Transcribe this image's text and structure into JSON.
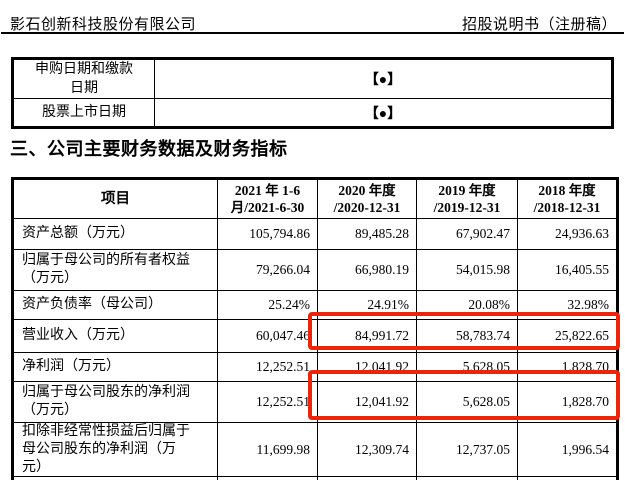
{
  "page": {
    "header": {
      "company": "影石创新科技股份有限公司",
      "doc_type": "招股说明书（注册稿）"
    },
    "section_title": "三、公司主要财务数据及财务指标"
  },
  "issue_info_table": {
    "rows": [
      {
        "label": "申购日期和缴款日期",
        "value": "【●】"
      },
      {
        "label": "股票上市日期",
        "value": "【●】"
      }
    ]
  },
  "financial_table": {
    "item_header": "项目",
    "columns": [
      {
        "line1": "2021 年 1-6",
        "line2": "月/2021-6-30"
      },
      {
        "line1": "2020 年度",
        "line2": "/2020-12-31"
      },
      {
        "line1": "2019 年度",
        "line2": "/2019-12-31"
      },
      {
        "line1": "2018 年度",
        "line2": "/2018-12-31"
      }
    ],
    "rows": [
      {
        "label": "资产总额（万元）",
        "values": [
          "105,794.86",
          "89,485.28",
          "67,902.47",
          "24,936.63"
        ]
      },
      {
        "label": "归属于母公司的所有者权益（万元）",
        "values": [
          "79,266.04",
          "66,980.19",
          "54,015.98",
          "16,405.55"
        ]
      },
      {
        "label": "资产负债率（母公司）",
        "values": [
          "25.24%",
          "24.91%",
          "20.08%",
          "32.98%"
        ]
      },
      {
        "label": "营业收入（万元）",
        "values": [
          "60,047.46",
          "84,991.72",
          "58,783.74",
          "25,822.65"
        ]
      },
      {
        "label": "净利润（万元）",
        "values": [
          "12,252.51",
          "12,041.92",
          "5,628.05",
          "1,828.70"
        ]
      },
      {
        "label": "归属于母公司股东的净利润（万元）",
        "values": [
          "12,252.51",
          "12,041.92",
          "5,628.05",
          "1,828.70"
        ]
      },
      {
        "label": "扣除非经常性损益后归属于母公司股东的净利润（万元）",
        "values": [
          "11,699.98",
          "12,309.74",
          "12,737.05",
          "1,996.54"
        ]
      }
    ]
  },
  "annotations": {
    "highlight_color": "#ee2409",
    "boxes": [
      {
        "row": "营业收入（万元）",
        "columns": [
          "2020 年度",
          "2019 年度",
          "2018 年度"
        ]
      },
      {
        "row": "归属于母公司股东的净利润（万元）",
        "columns": [
          "2020 年度",
          "2019 年度",
          "2018 年度"
        ]
      }
    ]
  }
}
